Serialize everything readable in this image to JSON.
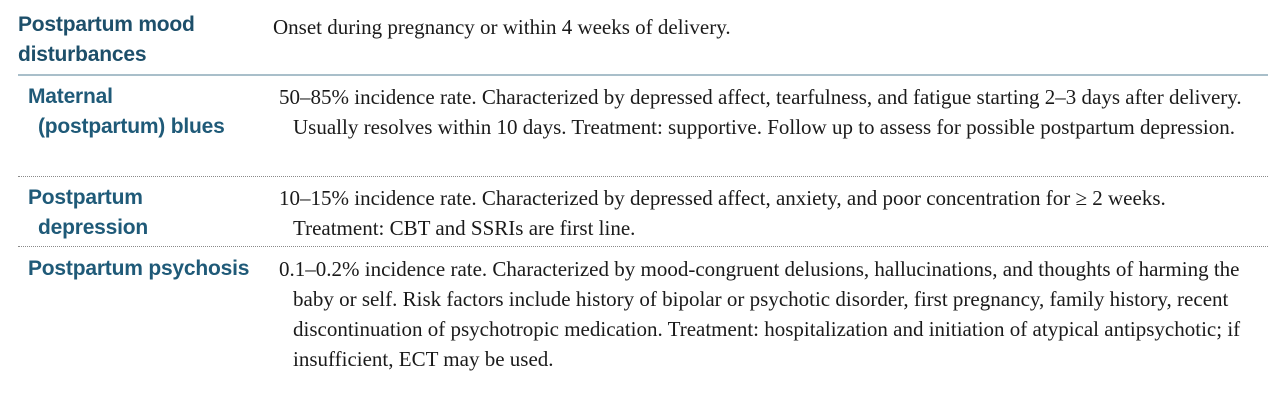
{
  "header": {
    "term": "Postpartum mood disturbances",
    "term_line1": "Postpartum mood",
    "term_line2": "disturbances",
    "description": "Onset during pregnancy or within 4 weeks of delivery."
  },
  "rows": [
    {
      "term_line1": "Maternal",
      "term_line2": "(postpartum) blues",
      "description": "50–85% incidence rate. Characterized by depressed affect, tearfulness, and fatigue starting 2–3 days after delivery. Usually resolves within 10 days. Treatment: supportive. Follow up to assess for possible postpartum depression."
    },
    {
      "term_line1": "Postpartum",
      "term_line2": "depression",
      "description": "10–15% incidence rate. Characterized by depressed affect, anxiety, and poor concentration for ≥ 2 weeks. Treatment: CBT and SSRIs are first line."
    },
    {
      "term_line1": "Postpartum psychosis",
      "term_line2": "",
      "description": "0.1–0.2% incidence rate. Characterized by mood-congruent delusions, hallucinations, and thoughts of harming the baby or self. Risk factors include history of bipolar or psychotic disorder, first pregnancy, family history, recent discontinuation of psychotropic medication. Treatment: hospitalization and initiation of atypical antipsychotic; if insufficient, ECT may be used."
    }
  ]
}
